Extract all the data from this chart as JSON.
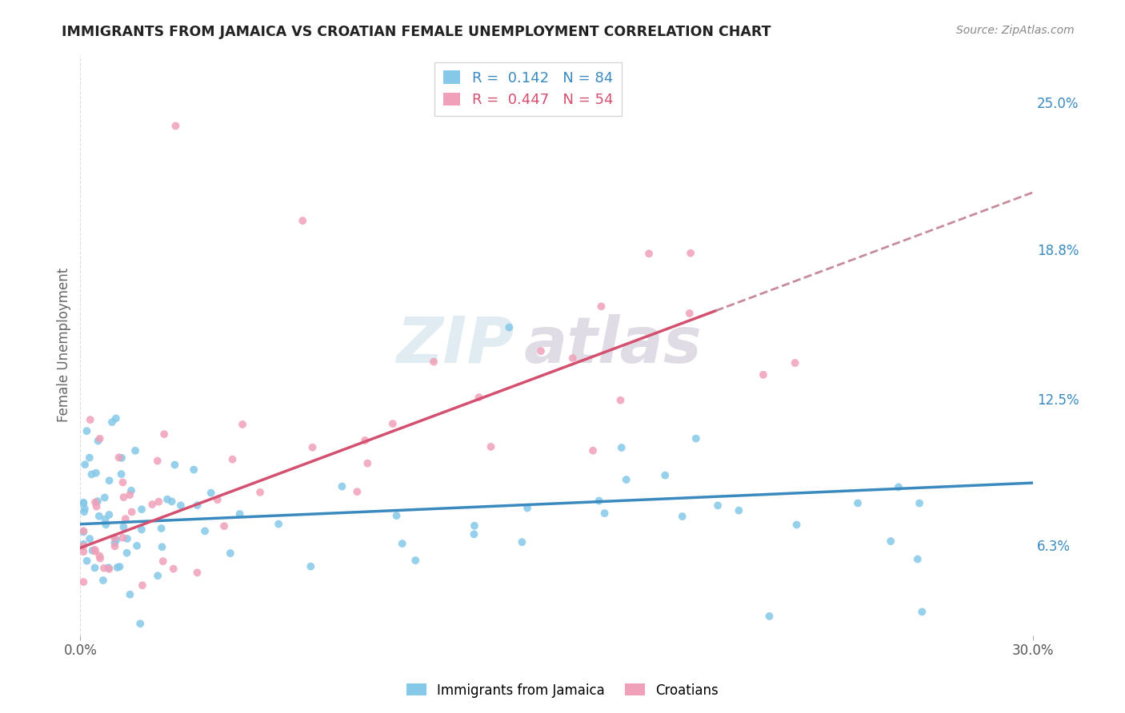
{
  "title": "IMMIGRANTS FROM JAMAICA VS CROATIAN FEMALE UNEMPLOYMENT CORRELATION CHART",
  "source": "Source: ZipAtlas.com",
  "ylabel": "Female Unemployment",
  "y_ticks_right": [
    6.3,
    12.5,
    18.8,
    25.0
  ],
  "y_ticks_right_labels": [
    "6.3%",
    "12.5%",
    "18.8%",
    "25.0%"
  ],
  "xlim": [
    0.0,
    30.0
  ],
  "ylim": [
    2.5,
    27.0
  ],
  "series1_color": "#85c8e8",
  "series2_color": "#f0a0b8",
  "series1_R": 0.142,
  "series1_N": 84,
  "series2_R": 0.447,
  "series2_N": 54,
  "watermark_zip": "ZIP",
  "watermark_atlas": "atlas",
  "background_color": "#ffffff",
  "grid_color": "#dddddd",
  "legend_label_1": "Immigrants from Jamaica",
  "legend_label_2": "Croatians",
  "trend_line_color_1": "#3a8abf",
  "trend_line_color_2": "#d45070",
  "trend_line_dashed_color": "#c08090"
}
